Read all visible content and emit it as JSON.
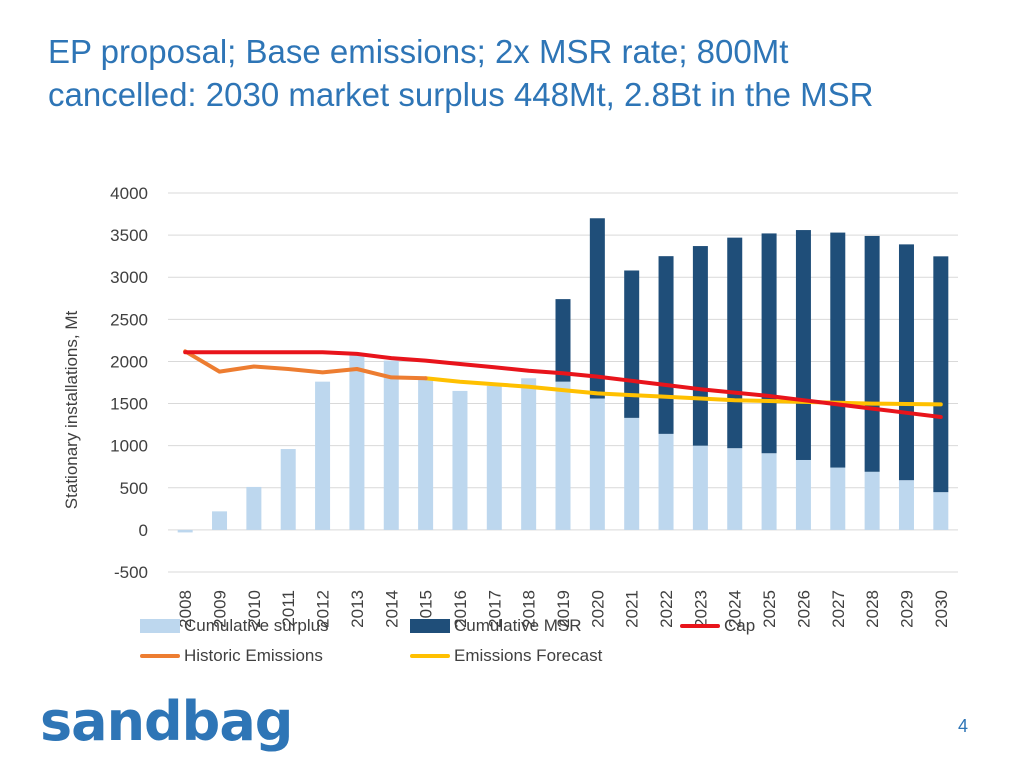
{
  "slide": {
    "title_line1": "EP proposal; Base emissions; 2x MSR rate; 800Mt",
    "title_line2": "cancelled: 2030 market surplus 448Mt, 2.8Bt in the MSR",
    "logo_text": "sandbag",
    "page_number": "4",
    "title_color": "#2E75B6"
  },
  "chart_data": {
    "type": "bar",
    "title": "",
    "xlabel": "",
    "ylabel": "Stationary installations, Mt",
    "ylim": [
      -500,
      4000
    ],
    "yticks": [
      -500,
      0,
      500,
      1000,
      1500,
      2000,
      2500,
      3000,
      3500,
      4000
    ],
    "grid": true,
    "legend_position": "bottom",
    "categories": [
      "2008",
      "2009",
      "2010",
      "2011",
      "2012",
      "2013",
      "2014",
      "2015",
      "2016",
      "2017",
      "2018",
      "2019",
      "2020",
      "2021",
      "2022",
      "2023",
      "2024",
      "2025",
      "2026",
      "2027",
      "2028",
      "2029",
      "2030"
    ],
    "series": [
      {
        "name": "Cumulative surplus",
        "kind": "bar-stack",
        "color": "#BDD7EE",
        "values": [
          -30,
          220,
          510,
          960,
          1760,
          2070,
          2010,
          1800,
          1650,
          1710,
          1800,
          1760,
          1560,
          1330,
          1140,
          1000,
          970,
          910,
          830,
          740,
          690,
          590,
          448
        ]
      },
      {
        "name": "Cumulative MSR",
        "kind": "bar-stack",
        "color": "#1F4E79",
        "values": [
          0,
          0,
          0,
          0,
          0,
          0,
          0,
          0,
          0,
          0,
          0,
          980,
          2140,
          1750,
          2110,
          2370,
          2500,
          2610,
          2730,
          2790,
          2800,
          2800,
          2800
        ]
      },
      {
        "name": "Cap",
        "kind": "line",
        "color": "#E8141B",
        "values": [
          2110,
          2110,
          2110,
          2110,
          2110,
          2090,
          2040,
          2010,
          1970,
          1930,
          1890,
          1860,
          1820,
          1770,
          1720,
          1670,
          1630,
          1590,
          1540,
          1490,
          1440,
          1390,
          1340
        ]
      },
      {
        "name": "Historic Emissions",
        "kind": "line",
        "color": "#ED7D31",
        "values": [
          2120,
          1880,
          1940,
          1910,
          1870,
          1910,
          1810,
          1800,
          null,
          null,
          null,
          null,
          null,
          null,
          null,
          null,
          null,
          null,
          null,
          null,
          null,
          null,
          null
        ]
      },
      {
        "name": "Emissions Forecast",
        "kind": "line",
        "color": "#FFC000",
        "values": [
          null,
          null,
          null,
          null,
          null,
          null,
          null,
          1800,
          1760,
          1730,
          1700,
          1660,
          1620,
          1600,
          1580,
          1560,
          1540,
          1530,
          1520,
          1510,
          1500,
          1495,
          1490
        ]
      }
    ]
  }
}
